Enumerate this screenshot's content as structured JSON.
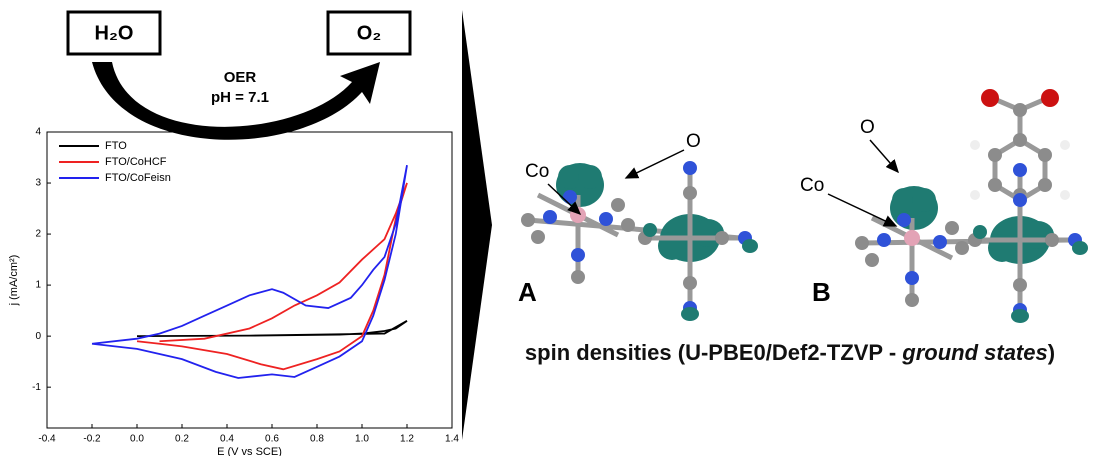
{
  "chart_data": {
    "type": "line",
    "y_label": "j (mA/cm²)",
    "x_label": "E (V vs SCE)",
    "xlim": [
      -0.4,
      1.4
    ],
    "ylim": [
      -1.8,
      4
    ],
    "xticks": [
      -0.4,
      -0.2,
      {
        "value": 0,
        "label": "0.0"
      },
      0.2,
      0.4,
      0.6,
      0.8,
      {
        "value": 1,
        "label": "1.0"
      },
      1.2,
      1.4
    ],
    "yticks": [
      -1,
      0,
      1,
      2,
      3,
      4
    ],
    "legend": "upper left",
    "series": [
      {
        "name": "FTO",
        "color": "#000000",
        "x": [
          0,
          0.5,
          0.9,
          1.0,
          1.1,
          1.15,
          1.2,
          1.1,
          0.5,
          0
        ],
        "values": [
          0,
          0.01,
          0.03,
          0.05,
          0.1,
          0.15,
          0.3,
          0.05,
          0.01,
          0
        ]
      },
      {
        "name": "FTO/CoHCF",
        "color": "#ee2222",
        "x": [
          0.1,
          0.3,
          0.5,
          0.6,
          0.7,
          0.8,
          0.9,
          1.0,
          1.1,
          1.15,
          1.2,
          1.15,
          1.1,
          1.05,
          1.0,
          0.9,
          0.8,
          0.65,
          0.55,
          0.4,
          0.2,
          0.1,
          0
        ],
        "values": [
          -0.1,
          -0.05,
          0.15,
          0.35,
          0.6,
          0.8,
          1.05,
          1.5,
          1.9,
          2.4,
          3.0,
          2.3,
          1.2,
          0.5,
          0.0,
          -0.3,
          -0.45,
          -0.65,
          -0.55,
          -0.35,
          -0.2,
          -0.15,
          -0.1
        ]
      },
      {
        "name": "FTO/CoFeisn",
        "color": "#2222ee",
        "x": [
          -0.2,
          0,
          0.1,
          0.2,
          0.3,
          0.4,
          0.5,
          0.6,
          0.65,
          0.75,
          0.85,
          0.95,
          1.0,
          1.05,
          1.1,
          1.15,
          1.2,
          1.15,
          1.1,
          1.05,
          1.0,
          0.9,
          0.8,
          0.7,
          0.6,
          0.45,
          0.35,
          0.2,
          0,
          -0.2
        ],
        "values": [
          -0.15,
          -0.05,
          0.05,
          0.2,
          0.4,
          0.6,
          0.8,
          0.92,
          0.85,
          0.6,
          0.55,
          0.75,
          1.0,
          1.3,
          1.55,
          2.2,
          3.35,
          2.0,
          1.1,
          0.4,
          -0.1,
          -0.4,
          -0.6,
          -0.8,
          -0.75,
          -0.82,
          -0.7,
          -0.45,
          -0.25,
          -0.15
        ]
      }
    ]
  },
  "scheme": {
    "reactant": "H₂O",
    "product": "O₂",
    "process": "OER",
    "condition": "pH = 7.1"
  },
  "molecules": {
    "a": {
      "label": "A",
      "o_label": "O",
      "co_label": "Co"
    },
    "b": {
      "label": "B",
      "o_label": "O",
      "co_label": "Co"
    },
    "caption": {
      "text": "spin densities (U-PBE0/Def2-TZVP - ",
      "emphasis": "ground states",
      "end": ")"
    }
  }
}
